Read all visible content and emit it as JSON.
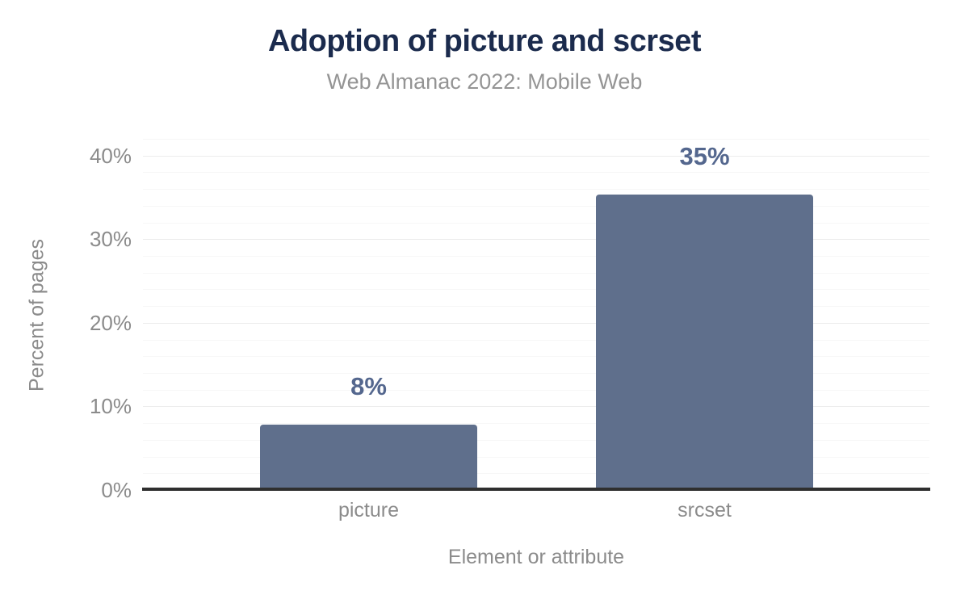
{
  "chart_data": {
    "type": "bar",
    "title": "Adoption of picture and scrset",
    "subtitle": "Web Almanac 2022: Mobile Web",
    "xlabel": "Element or attribute",
    "ylabel": "Percent of pages",
    "categories": [
      "picture",
      "srcset"
    ],
    "values": [
      7.8,
      35.3
    ],
    "data_labels": [
      "8%",
      "35%"
    ],
    "ylim": [
      0,
      42
    ],
    "yticks": [
      {
        "value": 0,
        "label": "0%"
      },
      {
        "value": 10,
        "label": "10%"
      },
      {
        "value": 20,
        "label": "20%"
      },
      {
        "value": 30,
        "label": "30%"
      },
      {
        "value": 40,
        "label": "40%"
      }
    ],
    "minor_tick_step": 2,
    "major_tick_step": 10,
    "grid": "horizontal gridlines, minor every 2%, major every 10%",
    "legend": "none",
    "colors": {
      "bar": "#5f6f8c",
      "data_label": "#54678e",
      "title": "#1b2b4d",
      "subtitle": "#949494",
      "axis_text": "#8b8b8b",
      "axis_line": "#2f2f2f",
      "grid_major": "#ececec",
      "grid_minor": "#f7f7f7",
      "background": "#ffffff"
    }
  }
}
